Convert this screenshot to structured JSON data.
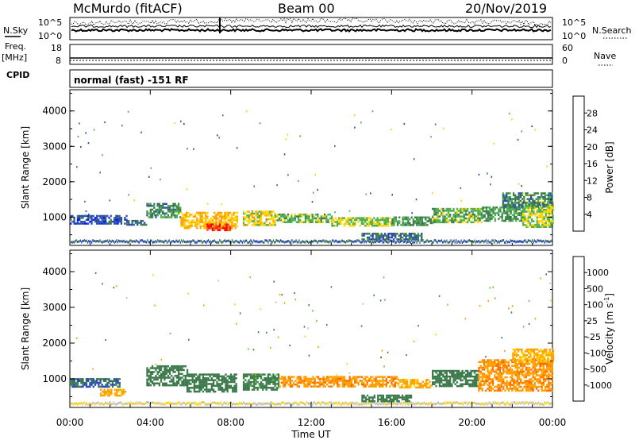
{
  "header": {
    "station": "McMurdo (fitACF)",
    "beam": "Beam 00",
    "date": "20/Nov/2019",
    "cpid_label": "CPID",
    "mode": "normal (fast) -151 RF"
  },
  "nsky_panel": {
    "left_label": "N.Sky",
    "right_label": "N.Search",
    "left_ticks": [
      "10^5",
      "10^0"
    ],
    "right_ticks": [
      "10^5",
      "10^0"
    ]
  },
  "freq_panel": {
    "left_label_1": "Freq.",
    "left_label_2": "[MHz]",
    "right_label": "Nave",
    "left_ticks": [
      "18",
      "8"
    ],
    "right_ticks": [
      "60",
      "0"
    ]
  },
  "time_axis": {
    "title": "Time UT",
    "ticks": [
      "00:00",
      "04:00",
      "08:00",
      "12:00",
      "16:00",
      "20:00",
      "00:00"
    ]
  },
  "chart_data": [
    {
      "type": "heatmap",
      "name": "power",
      "ylabel": "Slant Range [km]",
      "xlabel": "Time UT",
      "xlim_hours": [
        0,
        24
      ],
      "ylim": [
        200,
        4600
      ],
      "y_ticks": [
        "4000",
        "3000",
        "2000",
        "1000"
      ],
      "colorbar_label": "Power [dB]",
      "colorbar_ticks": [
        "28",
        "24",
        "20",
        "16",
        "12",
        "8",
        "4"
      ],
      "colorbar_colors": [
        "#0019ff",
        "#2b4ab8",
        "#3c7a4c",
        "#4caf50",
        "#ffd400",
        "#ffa000",
        "#ff5a00",
        "#ff0000"
      ],
      "regions": [
        {
          "t0": 0.0,
          "t1": 2.8,
          "r0": 820,
          "r1": 1060,
          "level": 6
        },
        {
          "t0": 2.8,
          "t1": 3.8,
          "r0": 760,
          "r1": 920,
          "level": 8
        },
        {
          "t0": 3.8,
          "t1": 5.5,
          "r0": 1000,
          "r1": 1400,
          "level": 10
        },
        {
          "t0": 5.5,
          "t1": 8.3,
          "r0": 680,
          "r1": 1150,
          "level": 20
        },
        {
          "t0": 6.8,
          "t1": 8.0,
          "r0": 620,
          "r1": 820,
          "level": 28
        },
        {
          "t0": 8.6,
          "t1": 10.2,
          "r0": 760,
          "r1": 1180,
          "level": 18
        },
        {
          "t0": 10.2,
          "t1": 13.0,
          "r0": 850,
          "r1": 1100,
          "level": 14
        },
        {
          "t0": 13.0,
          "t1": 16.0,
          "r0": 780,
          "r1": 1000,
          "level": 16
        },
        {
          "t0": 14.5,
          "t1": 17.5,
          "r0": 360,
          "r1": 560,
          "level": 9
        },
        {
          "t0": 16.0,
          "t1": 18.0,
          "r0": 800,
          "r1": 1020,
          "level": 12
        },
        {
          "t0": 18.0,
          "t1": 20.5,
          "r0": 860,
          "r1": 1260,
          "level": 14
        },
        {
          "t0": 20.5,
          "t1": 22.5,
          "r0": 880,
          "r1": 1300,
          "level": 12
        },
        {
          "t0": 22.5,
          "t1": 24.0,
          "r0": 700,
          "r1": 1450,
          "level": 16
        },
        {
          "t0": 21.5,
          "t1": 24.0,
          "r0": 1300,
          "r1": 1700,
          "level": 10
        }
      ]
    },
    {
      "type": "heatmap",
      "name": "velocity",
      "ylabel": "Slant Range [km]",
      "xlabel": "Time UT",
      "xlim_hours": [
        0,
        24
      ],
      "ylim": [
        200,
        4600
      ],
      "y_ticks": [
        "4000",
        "3000",
        "2000",
        "1000"
      ],
      "colorbar_label": "Velocity [m s",
      "colorbar_label_sup": "-1",
      "colorbar_label_end": "]",
      "colorbar_ticks": [
        "1000",
        "500",
        "100",
        "25",
        "-25",
        "-100",
        "-500",
        "-1000"
      ],
      "colorbar_colors": [
        "#0019ff",
        "#2b4ab8",
        "#3c7a4c",
        "#5ac83a",
        "#bfbfbf",
        "#ffd400",
        "#ffa000",
        "#ff6a00",
        "#ff0000"
      ],
      "regions": [
        {
          "t0": 0.0,
          "t1": 2.5,
          "r0": 780,
          "r1": 1020,
          "level": 500
        },
        {
          "t0": 1.5,
          "t1": 2.8,
          "r0": 560,
          "r1": 720,
          "level": -200
        },
        {
          "t0": 3.8,
          "t1": 5.8,
          "r0": 800,
          "r1": 1380,
          "level": 300
        },
        {
          "t0": 5.8,
          "t1": 8.3,
          "r0": 660,
          "r1": 1150,
          "level": 300
        },
        {
          "t0": 8.6,
          "t1": 10.4,
          "r0": 720,
          "r1": 1150,
          "level": 200
        },
        {
          "t0": 10.4,
          "t1": 16.3,
          "r0": 780,
          "r1": 1080,
          "level": -400
        },
        {
          "t0": 14.5,
          "t1": 17.0,
          "r0": 380,
          "r1": 560,
          "level": 300
        },
        {
          "t0": 16.3,
          "t1": 18.0,
          "r0": 780,
          "r1": 1000,
          "level": -150
        },
        {
          "t0": 18.0,
          "t1": 20.3,
          "r0": 800,
          "r1": 1250,
          "level": 300
        },
        {
          "t0": 20.3,
          "t1": 24.0,
          "r0": 650,
          "r1": 1550,
          "level": -400
        },
        {
          "t0": 22.0,
          "t1": 24.0,
          "r0": 1500,
          "r1": 1850,
          "level": -120
        }
      ]
    }
  ]
}
